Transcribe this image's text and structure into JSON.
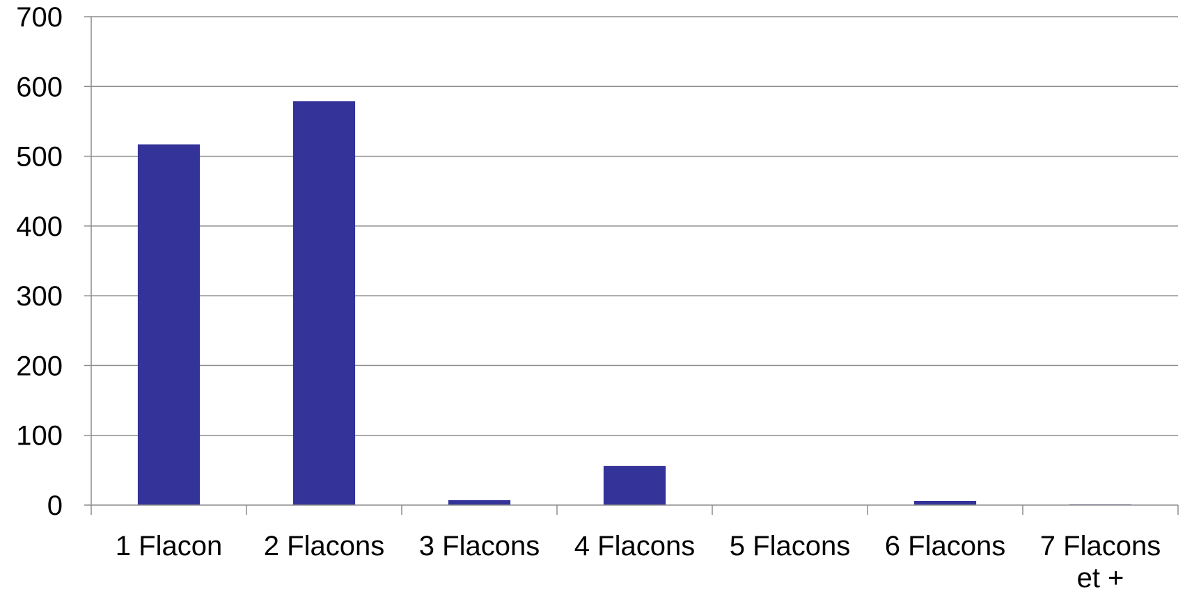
{
  "chart_data": {
    "type": "bar",
    "title": "",
    "xlabel": "",
    "ylabel": "",
    "categories": [
      "1 Flacon",
      "2 Flacons",
      "3 Flacons",
      "4 Flacons",
      "5 Flacons",
      "6 Flacons",
      "7 Flacons et +"
    ],
    "values": [
      517,
      579,
      7,
      56,
      0,
      6,
      1
    ],
    "ylim": [
      0,
      700
    ],
    "yticks": [
      "0",
      "100",
      "200",
      "300",
      "400",
      "500",
      "600",
      "700"
    ],
    "grid": true,
    "legend": "none",
    "colors": {
      "bar": "#333399",
      "grid": "#8c8c8c",
      "axis": "#8c8c8c",
      "text": "#000000"
    }
  }
}
